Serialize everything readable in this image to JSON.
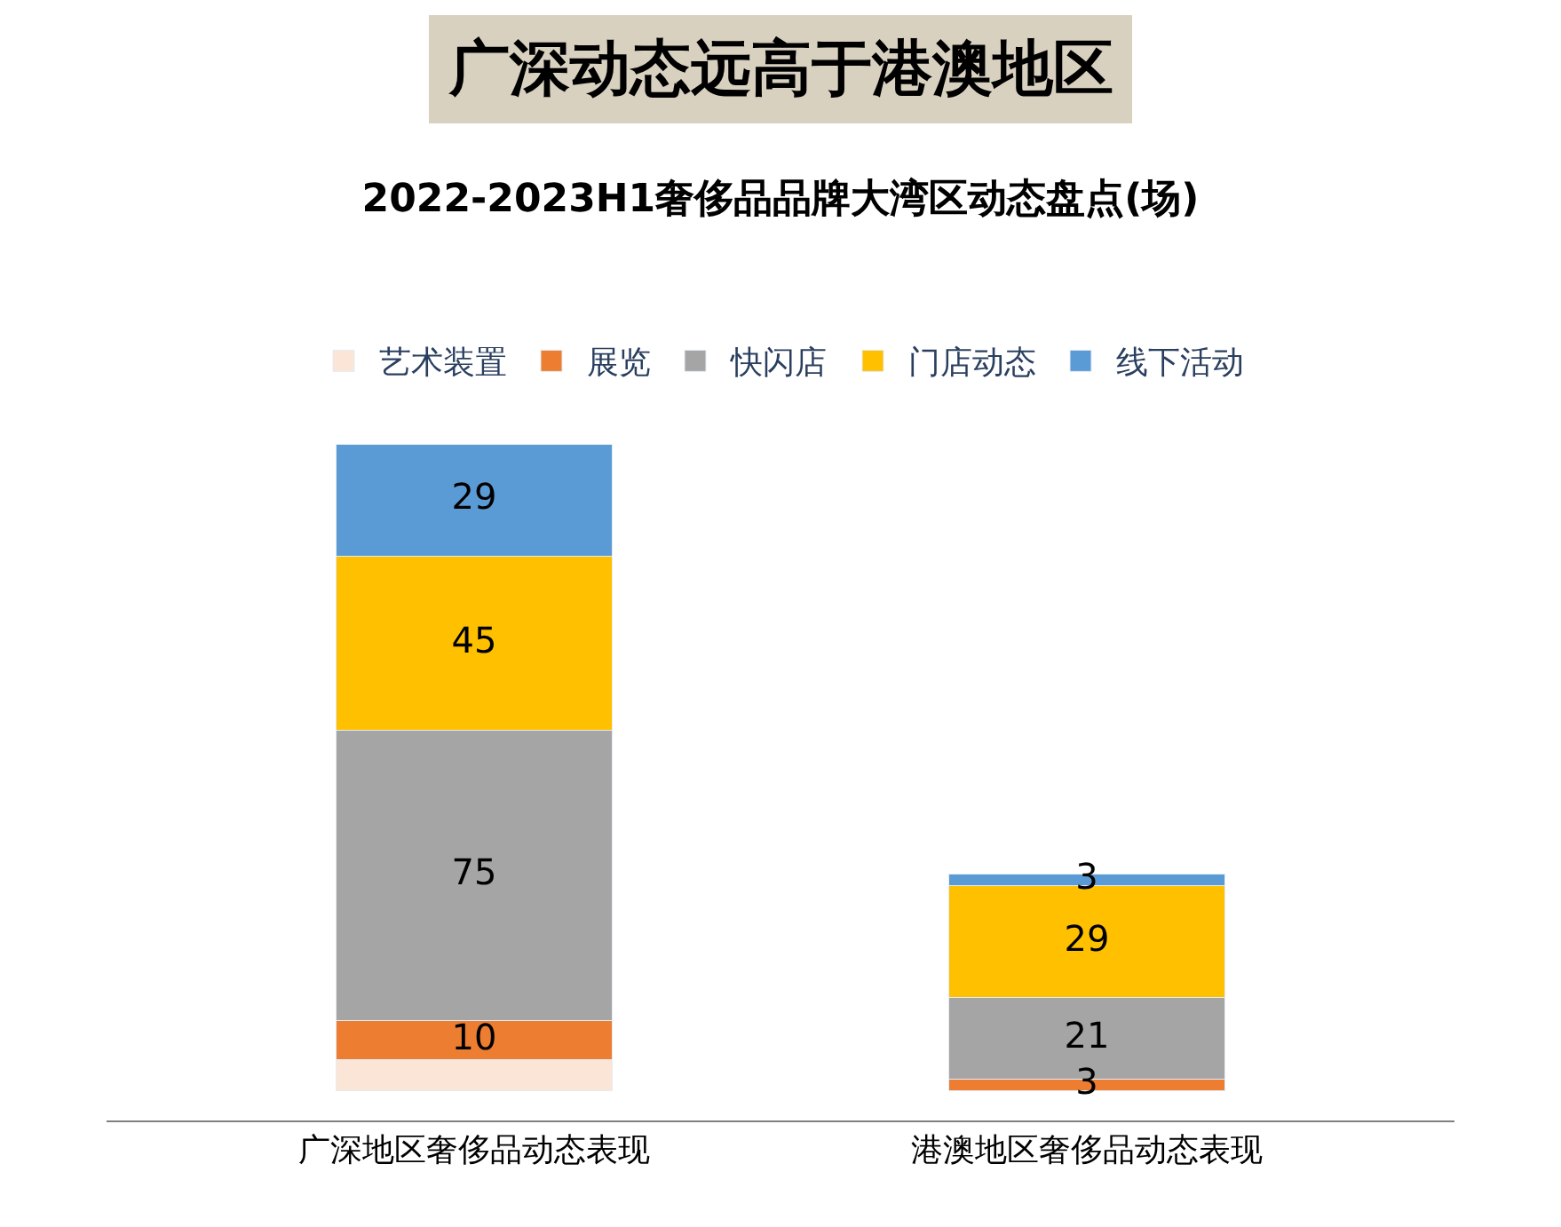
{
  "chart_data": {
    "type": "bar",
    "title": "广深动态远高于港澳地区",
    "subtitle": "2022-2023H1奢侈品品牌大湾区动态盘点(场)",
    "categories": [
      "广深地区奢侈品动态表现",
      "港澳地区奢侈品动态表现"
    ],
    "stacked": true,
    "legend": "top",
    "series": [
      {
        "name": "艺术装置",
        "color": "#fbe5d6",
        "values": [
          8,
          null
        ],
        "value_labels": [
          null,
          null
        ]
      },
      {
        "name": "展览",
        "color": "#ed7d31",
        "values": [
          10,
          3
        ],
        "value_labels": [
          "10",
          "3"
        ]
      },
      {
        "name": "快闪店",
        "color": "#a5a5a5",
        "values": [
          75,
          21
        ],
        "value_labels": [
          "75",
          "21"
        ]
      },
      {
        "name": "门店动态",
        "color": "#ffc000",
        "values": [
          45,
          29
        ],
        "value_labels": [
          "45",
          "29"
        ]
      },
      {
        "name": "线下活动",
        "color": "#5b9bd5",
        "values": [
          29,
          3
        ],
        "value_labels": [
          "29",
          "3"
        ]
      }
    ]
  }
}
